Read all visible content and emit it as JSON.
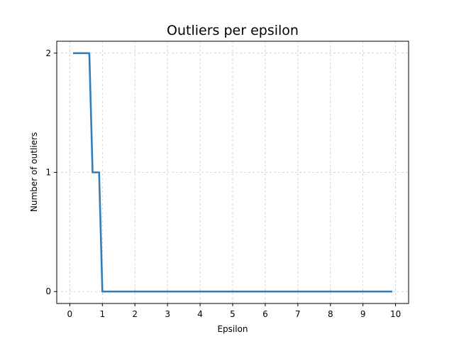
{
  "chart_data": {
    "type": "line",
    "title": "Outliers per epsilon",
    "xlabel": "Epsilon",
    "ylabel": "Number of outliers",
    "xlim": [
      -0.4,
      10.4
    ],
    "ylim": [
      -0.1,
      2.1
    ],
    "xticks": [
      0,
      1,
      2,
      3,
      4,
      5,
      6,
      7,
      8,
      9,
      10
    ],
    "xtick_labels": [
      "0",
      "1",
      "2",
      "3",
      "4",
      "5",
      "6",
      "7",
      "8",
      "9",
      "10"
    ],
    "yticks": [
      0,
      1,
      2
    ],
    "ytick_labels": [
      "0",
      "1",
      "2"
    ],
    "grid": true,
    "grid_style": "dashed",
    "series": [
      {
        "color": "#2f7fbf",
        "x": [
          0.1,
          0.6,
          0.7,
          0.9,
          1.0,
          9.9
        ],
        "y": [
          2,
          2,
          1,
          1,
          0,
          0
        ]
      }
    ]
  }
}
